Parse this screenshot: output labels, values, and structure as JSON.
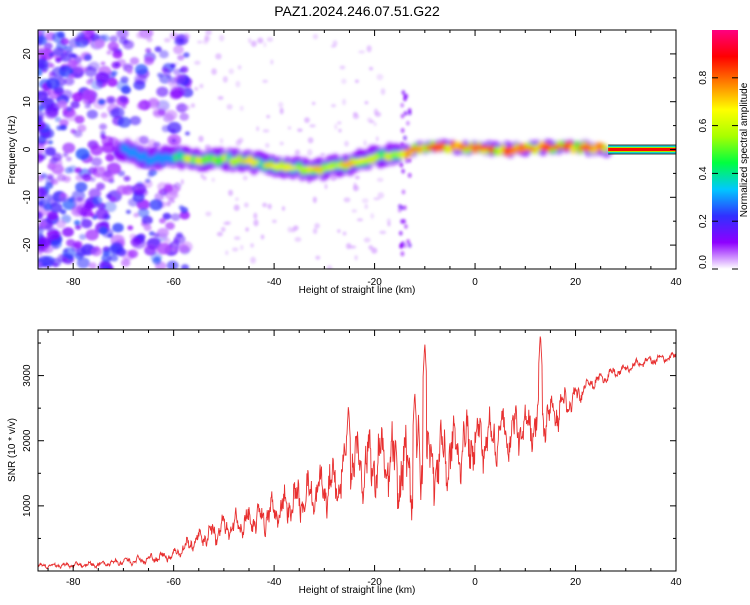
{
  "chart_data": [
    {
      "type": "heatmap",
      "title": "PAZ1.2024.246.07.51.G22",
      "xlabel": "Height of straight line (km)",
      "ylabel": "Frequency (Hz)",
      "xlim": [
        -87,
        40
      ],
      "ylim": [
        -25,
        25
      ],
      "x_ticks": [
        -80,
        -60,
        -40,
        -20,
        0,
        20,
        40
      ],
      "y_ticks": [
        -20,
        -10,
        0,
        10,
        20
      ],
      "colorbar": {
        "label": "Normalized spectral amplitude",
        "range": [
          0,
          1
        ],
        "ticks": [
          "0.0",
          "0.2",
          "0.4",
          "0.6",
          "0.8"
        ],
        "colormap": [
          "#ffffff",
          "#8e00ff",
          "#3030ff",
          "#00c8ff",
          "#00ff40",
          "#a8ff00",
          "#ffff00",
          "#ff8000",
          "#ff0000",
          "#ff0080"
        ]
      },
      "ridge": {
        "x": [
          -70,
          -65,
          -60,
          -55,
          -50,
          -45,
          -40,
          -35,
          -30,
          -25,
          -20,
          -16,
          -12,
          -8,
          -4,
          0,
          5,
          10,
          15,
          20,
          26,
          40
        ],
        "y": [
          0,
          -2,
          -1.5,
          -2,
          -2,
          -2.5,
          -3.5,
          -4,
          -4,
          -3,
          -1.5,
          -1,
          0,
          0.5,
          0.5,
          0.5,
          0,
          0,
          0.5,
          0.5,
          0,
          0
        ]
      },
      "grid": false
    },
    {
      "type": "line",
      "xlabel": "Height of straight line (km)",
      "ylabel": "SNR (10 * v/v)",
      "xlim": [
        -87,
        40
      ],
      "ylim": [
        0,
        3700
      ],
      "x_ticks": [
        -80,
        -60,
        -40,
        -20,
        0,
        20,
        40
      ],
      "y_ticks": [
        1000,
        2000,
        3000
      ],
      "color": "#e83030",
      "series": [
        {
          "x": [
            -87,
            -80,
            -75,
            -70,
            -65,
            -60,
            -55,
            -50,
            -45,
            -40,
            -35,
            -30,
            -27,
            -25,
            -22,
            -20,
            -18,
            -15,
            -12,
            -10,
            -8,
            -5,
            -3,
            0,
            3,
            5,
            8,
            10,
            12,
            15,
            18,
            20,
            22,
            25,
            28,
            30,
            33,
            36,
            40
          ],
          "y": [
            80,
            90,
            100,
            150,
            180,
            250,
            500,
            650,
            750,
            900,
            1100,
            1250,
            1400,
            1700,
            1650,
            1650,
            1700,
            1500,
            1600,
            1600,
            1700,
            1800,
            1900,
            2000,
            2050,
            2100,
            2150,
            2200,
            2300,
            2400,
            2550,
            2650,
            2850,
            2950,
            3050,
            3100,
            3200,
            3250,
            3300
          ],
          "spread": [
            60,
            70,
            80,
            100,
            120,
            150,
            250,
            350,
            400,
            450,
            550,
            650,
            750,
            850,
            900,
            950,
            950,
            1000,
            1100,
            1100,
            1000,
            900,
            800,
            750,
            700,
            700,
            650,
            600,
            600,
            550,
            450,
            300,
            200,
            150,
            150,
            120,
            120,
            120,
            120
          ],
          "peaks": [
            [
              -25.2,
              2550
            ],
            [
              -10,
              3500
            ],
            [
              13,
              3650
            ],
            [
              -12,
              2750
            ]
          ]
        }
      ],
      "grid": false
    }
  ]
}
